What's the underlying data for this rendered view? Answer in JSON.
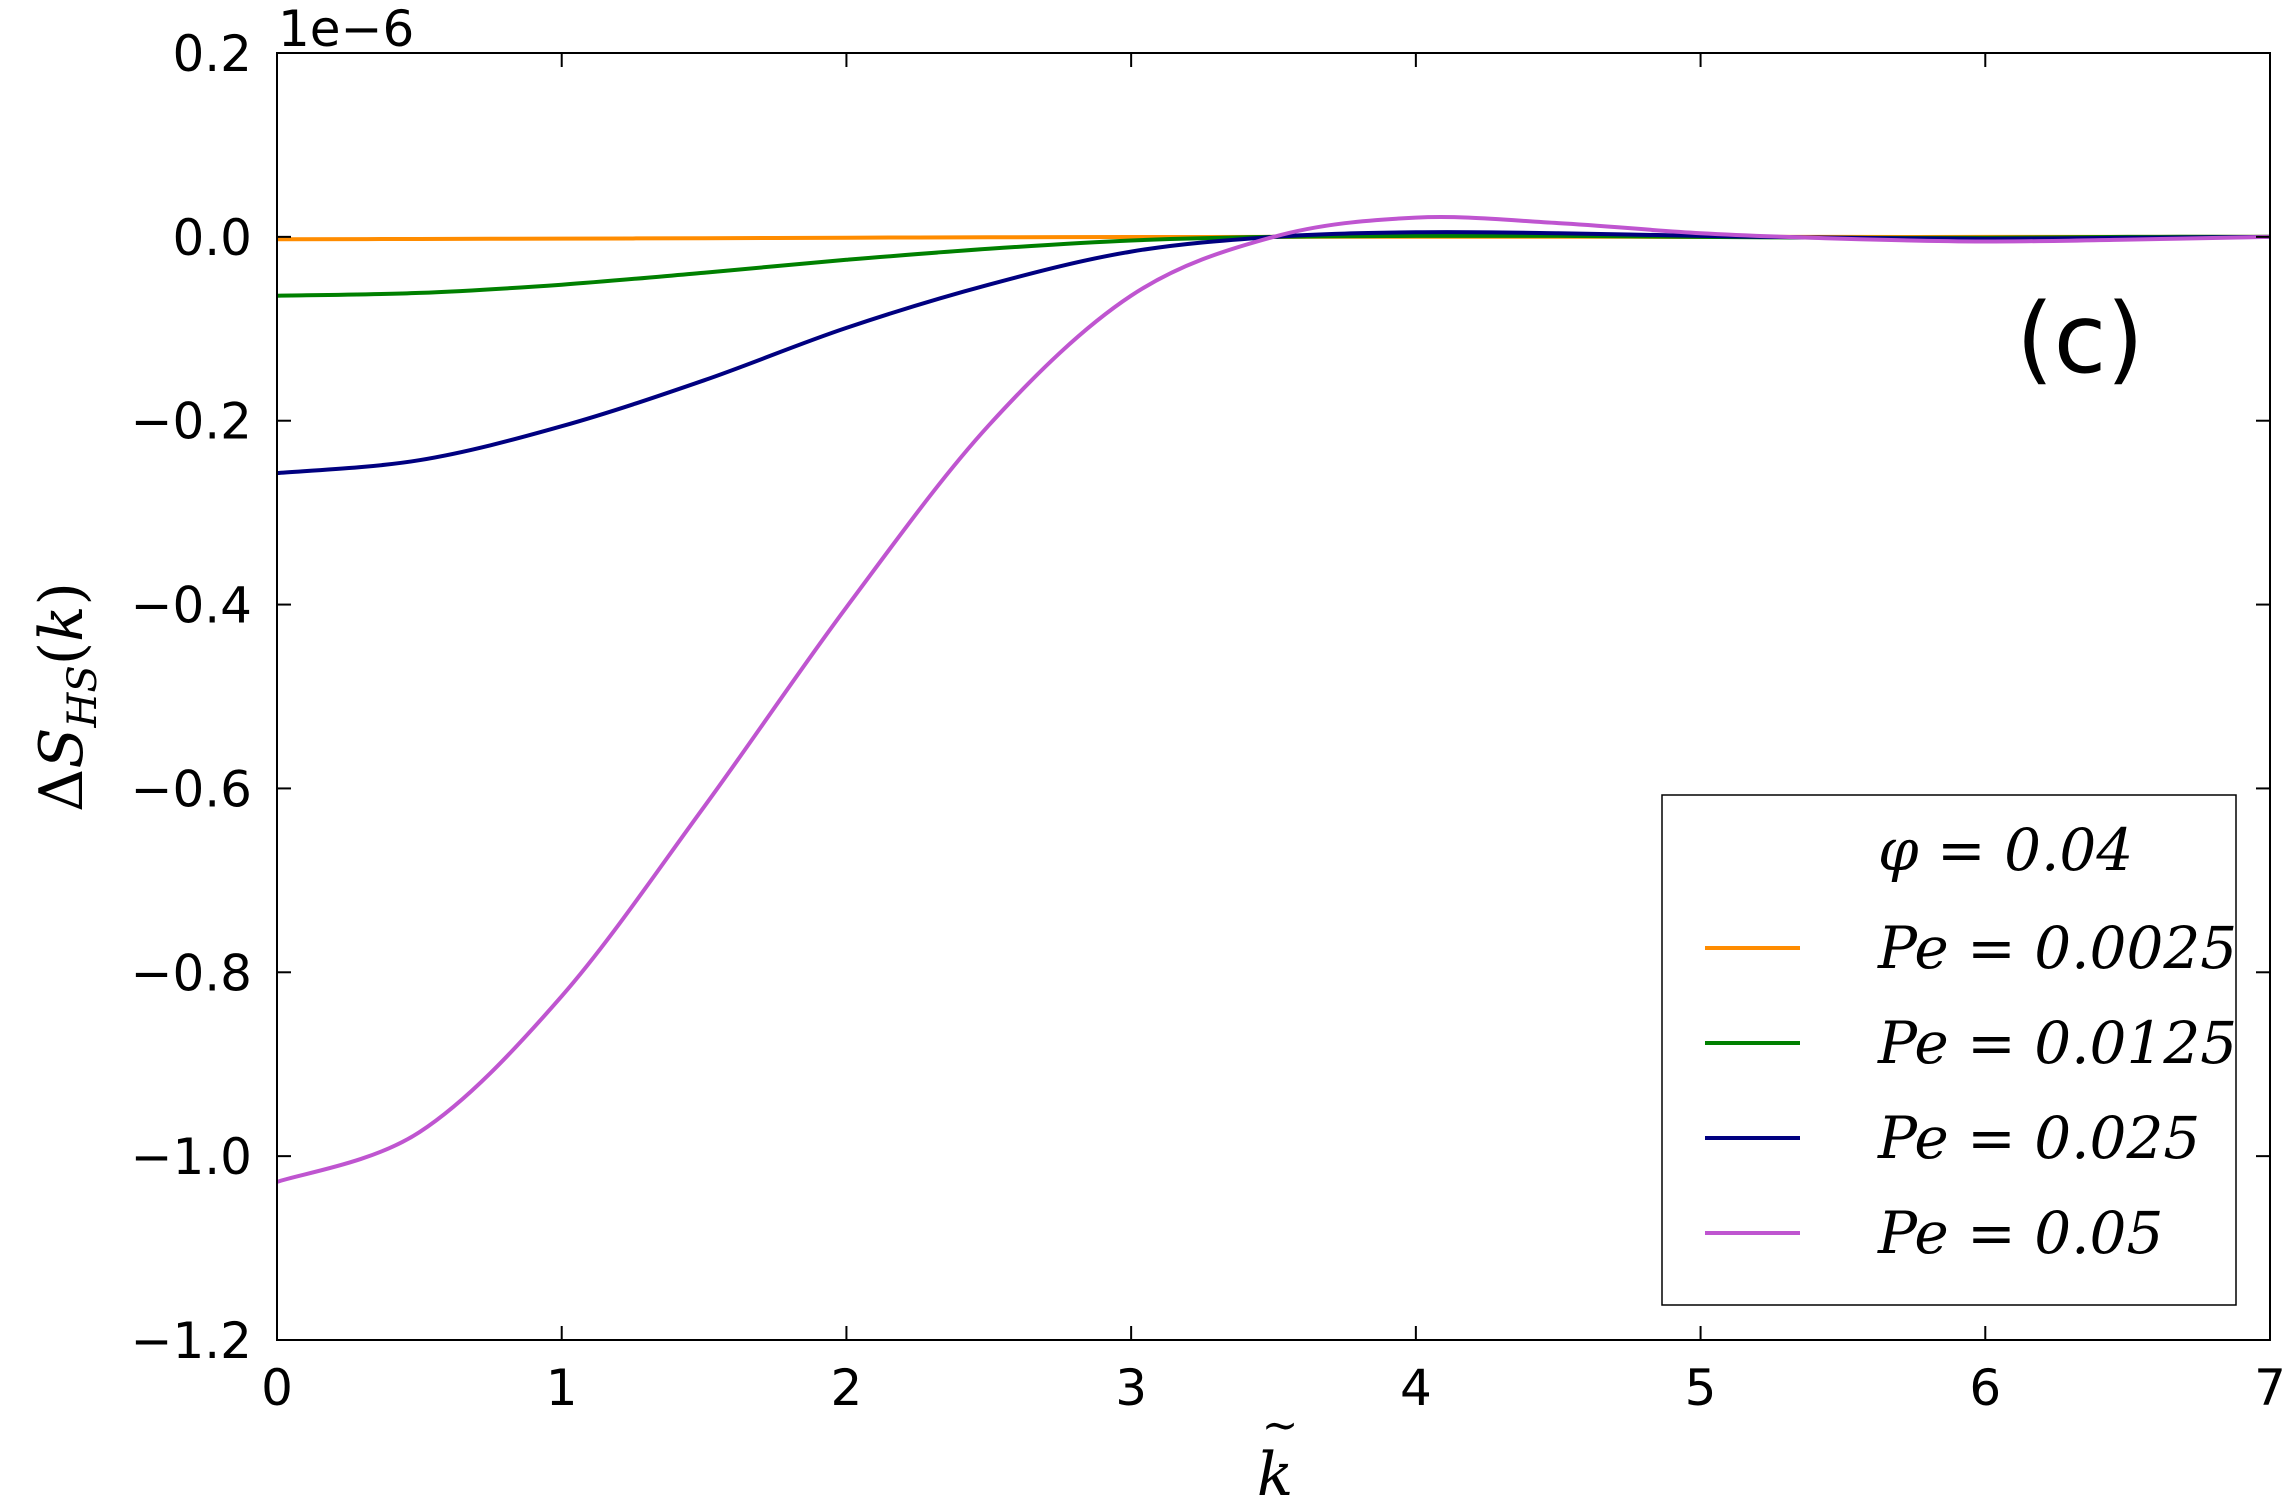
{
  "chart_data": {
    "type": "line",
    "panel_label": "(c)",
    "xlabel": "k̃",
    "ylabel": "ΔS_HS(k̃)",
    "y_offset_text": "1e−6",
    "xlim": [
      0,
      7
    ],
    "ylim": [
      -1.2,
      0.2
    ],
    "xticks": [
      0,
      1,
      2,
      3,
      4,
      5,
      6,
      7
    ],
    "xtick_labels": [
      "0",
      "1",
      "2",
      "3",
      "4",
      "5",
      "6",
      "7"
    ],
    "yticks": [
      0.2,
      0.0,
      -0.2,
      -0.4,
      -0.6,
      -0.8,
      -1.0,
      -1.2
    ],
    "ytick_labels": [
      "0.2",
      "0.0",
      "−0.2",
      "−0.4",
      "−0.6",
      "−0.8",
      "−1.0",
      "−1.2"
    ],
    "grid": false,
    "legend_position": "bottom-right",
    "legend_title": "φ = 0.04",
    "x": [
      0,
      0.5,
      1,
      1.5,
      2,
      2.5,
      3,
      3.5,
      4,
      4.5,
      5,
      5.5,
      6,
      6.5,
      7
    ],
    "series": [
      {
        "name": "Pe = 0.0025",
        "color": "#ff8c00",
        "values": [
          -0.0025,
          -0.0023,
          -0.0019,
          -0.0015,
          -0.0009,
          -0.0005,
          -0.0002,
          0.0,
          0.0001,
          0.0001,
          0.0,
          -0.0001,
          -0.0001,
          0.0,
          0.0
        ]
      },
      {
        "name": "Pe = 0.0125",
        "color": "#008000",
        "values": [
          -0.064,
          -0.061,
          -0.052,
          -0.039,
          -0.025,
          -0.013,
          -0.004,
          0.0,
          0.001,
          0.001,
          0.0,
          -0.001,
          -0.001,
          0.0,
          0.0
        ]
      },
      {
        "name": "Pe = 0.025",
        "color": "#000080",
        "values": [
          -0.257,
          -0.243,
          -0.206,
          -0.156,
          -0.099,
          -0.052,
          -0.016,
          0.0,
          0.005,
          0.004,
          0.001,
          -0.001,
          -0.002,
          -0.001,
          0.0
        ]
      },
      {
        "name": "Pe = 0.05",
        "color": "#bf55d0",
        "values": [
          -1.028,
          -0.974,
          -0.826,
          -0.62,
          -0.403,
          -0.205,
          -0.064,
          0.0,
          0.021,
          0.015,
          0.004,
          -0.002,
          -0.005,
          -0.003,
          0.0
        ]
      }
    ]
  }
}
